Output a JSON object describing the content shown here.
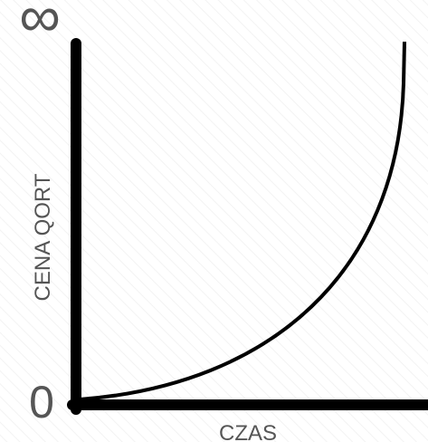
{
  "y_axis": {
    "top_label": "∞",
    "bottom_label": "0",
    "title": "CENA QORT"
  },
  "x_axis": {
    "title": "CZAS"
  }
}
